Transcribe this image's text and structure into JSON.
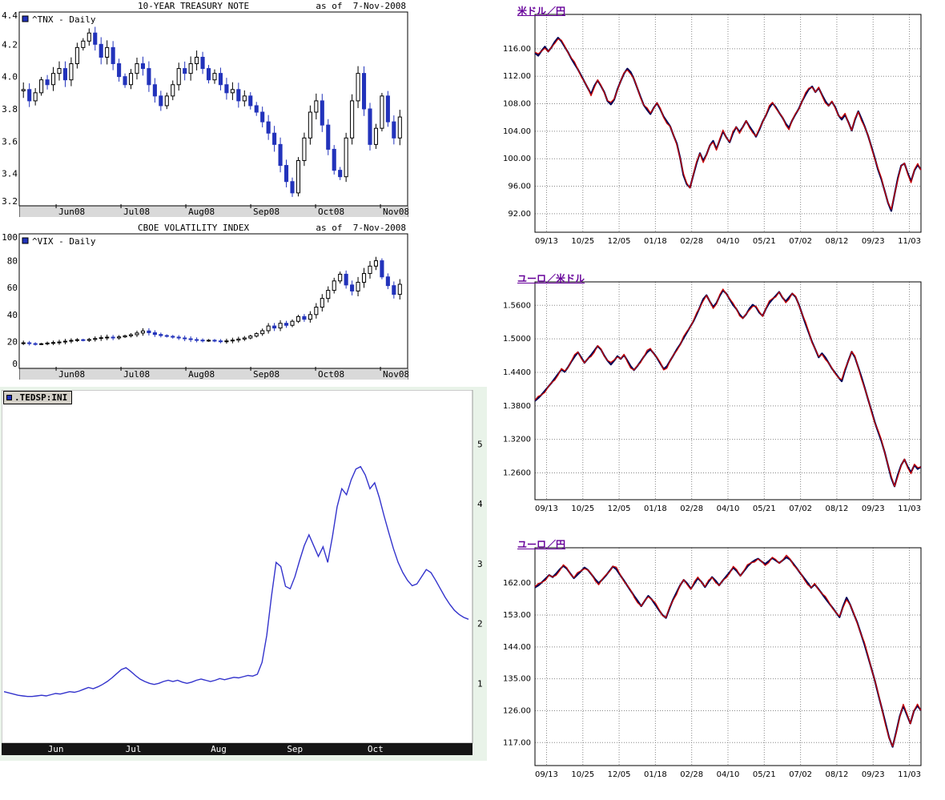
{
  "colors": {
    "candle_blue": "#2233bb",
    "line_blue": "#3333cc",
    "fx_navy": "#000055",
    "fx_red": "#cc0000",
    "title_purple": "#660099",
    "strip_gray": "#d9d9d9",
    "ted_bg": "#e9f3e9",
    "bar_black": "#151515"
  },
  "chart_data": [
    {
      "id": "tnx",
      "type": "candlestick",
      "title": "10-YEAR TREASURY NOTE",
      "as_of": "as of  7-Nov-2008",
      "legend": "^TNX - Daily",
      "ylim": [
        3.2,
        4.4
      ],
      "ytick_vals": [
        4.4,
        4.2,
        4.0,
        3.8,
        3.6,
        3.4,
        3.2
      ],
      "ytick_labels": [
        "4.4",
        "4.2",
        "4.0",
        "3.8",
        "3.6",
        "3.4",
        "3.2"
      ],
      "xlabels": [
        "Jun08",
        "Jul08",
        "Aug08",
        "Sep08",
        "Oct08",
        "Nov08"
      ],
      "xfrac": [
        0.095,
        0.262,
        0.429,
        0.596,
        0.763,
        0.93
      ],
      "hl": 0.05,
      "closes": [
        3.92,
        3.85,
        3.9,
        3.98,
        3.95,
        4.02,
        4.05,
        3.98,
        4.08,
        4.18,
        4.22,
        4.27,
        4.2,
        4.12,
        4.18,
        4.08,
        4.0,
        3.95,
        4.02,
        4.08,
        4.05,
        3.95,
        3.88,
        3.82,
        3.88,
        3.95,
        4.05,
        4.02,
        4.08,
        4.12,
        4.05,
        3.98,
        4.02,
        3.95,
        3.9,
        3.92,
        3.85,
        3.88,
        3.82,
        3.78,
        3.72,
        3.65,
        3.58,
        3.45,
        3.35,
        3.28,
        3.48,
        3.62,
        3.78,
        3.85,
        3.7,
        3.55,
        3.42,
        3.38,
        3.62,
        3.85,
        4.02,
        3.8,
        3.58,
        3.68,
        3.88,
        3.72,
        3.62,
        3.75
      ]
    },
    {
      "id": "vix",
      "type": "candlestick",
      "title": "CBOE VOLATILITY INDEX",
      "as_of": "as of  7-Nov-2008",
      "legend": "^VIX - Daily",
      "ylim": [
        0,
        100
      ],
      "ytick_vals": [
        100,
        80,
        60,
        40,
        20,
        0
      ],
      "ytick_labels": [
        "100",
        "80",
        "60",
        "40",
        "20",
        "0"
      ],
      "xlabels": [
        "Jun08",
        "Jul08",
        "Aug08",
        "Sep08",
        "Oct08",
        "Nov08"
      ],
      "xfrac": [
        0.095,
        0.262,
        0.429,
        0.596,
        0.763,
        0.93
      ],
      "hl": 2.0,
      "hl_growth": [
        0.4,
        0.028
      ],
      "closes": [
        19.0,
        18.4,
        18.0,
        18.3,
        18.8,
        19.2,
        19.6,
        20.2,
        20.8,
        21.3,
        20.8,
        21.5,
        22.2,
        22.8,
        23.2,
        22.6,
        23.4,
        24.2,
        25.0,
        26.3,
        27.8,
        26.5,
        25.2,
        24.4,
        23.8,
        23.2,
        22.6,
        22.0,
        21.4,
        21.0,
        20.6,
        20.9,
        20.4,
        20.0,
        20.4,
        21.0,
        21.8,
        22.6,
        24.0,
        25.8,
        28.0,
        31.5,
        30.0,
        33.5,
        32.0,
        35.0,
        38.5,
        36.5,
        40.0,
        45.5,
        52.0,
        58.0,
        65.0,
        70.0,
        62.0,
        57.5,
        64.0,
        70.5,
        76.0,
        80.0,
        68.0,
        61.5,
        55.0,
        62.5
      ]
    },
    {
      "id": "ted",
      "type": "line",
      "legend": ".TEDSP:INI",
      "ylim": [
        0,
        5.9
      ],
      "ytick_vals": [
        5,
        4,
        3,
        2,
        1
      ],
      "ytick_labels": [
        "5",
        "4",
        "3",
        "2",
        "1"
      ],
      "xlabels": [
        "Jun",
        "Jul",
        "Aug",
        "Sep",
        "Oct"
      ],
      "xfrac": [
        0.098,
        0.263,
        0.444,
        0.606,
        0.777
      ],
      "values": [
        0.86,
        0.84,
        0.82,
        0.8,
        0.79,
        0.78,
        0.78,
        0.79,
        0.8,
        0.79,
        0.81,
        0.83,
        0.82,
        0.84,
        0.86,
        0.85,
        0.87,
        0.9,
        0.93,
        0.91,
        0.94,
        0.98,
        1.03,
        1.09,
        1.16,
        1.23,
        1.26,
        1.2,
        1.13,
        1.07,
        1.03,
        1.0,
        0.98,
        1.0,
        1.03,
        1.05,
        1.03,
        1.05,
        1.02,
        1.0,
        1.02,
        1.05,
        1.07,
        1.05,
        1.03,
        1.05,
        1.08,
        1.06,
        1.08,
        1.1,
        1.09,
        1.11,
        1.13,
        1.12,
        1.15,
        1.35,
        1.8,
        2.45,
        3.02,
        2.95,
        2.62,
        2.58,
        2.78,
        3.05,
        3.3,
        3.48,
        3.3,
        3.12,
        3.28,
        3.02,
        3.45,
        3.95,
        4.25,
        4.15,
        4.4,
        4.58,
        4.62,
        4.48,
        4.25,
        4.35,
        4.1,
        3.8,
        3.52,
        3.25,
        3.02,
        2.85,
        2.72,
        2.63,
        2.66,
        2.78,
        2.9,
        2.85,
        2.72,
        2.58,
        2.44,
        2.32,
        2.22,
        2.15,
        2.1,
        2.07
      ]
    },
    {
      "id": "usdjpy",
      "type": "fx",
      "title": "米ドル／円",
      "ylim": [
        89.3,
        121.0
      ],
      "ytick_vals": [
        116,
        112,
        108,
        104,
        100,
        96,
        92
      ],
      "ytick_labels": [
        "116.00",
        "112.00",
        "108.00",
        "104.00",
        "100.00",
        "96.00",
        "92.00"
      ],
      "xlabels": [
        "09/13",
        "10/25",
        "12/05",
        "01/18",
        "02/28",
        "04/10",
        "05/21",
        "07/02",
        "08/12",
        "09/23",
        "11/03"
      ],
      "values": [
        115.4,
        115.0,
        115.7,
        116.3,
        115.6,
        116.2,
        117.0,
        117.6,
        117.1,
        116.3,
        115.5,
        114.6,
        113.8,
        113.0,
        112.1,
        111.2,
        110.3,
        109.4,
        110.6,
        111.4,
        110.6,
        109.7,
        108.4,
        107.9,
        108.6,
        110.1,
        111.3,
        112.4,
        113.1,
        112.6,
        111.6,
        110.3,
        109.0,
        107.8,
        107.1,
        106.5,
        107.4,
        108.1,
        107.2,
        106.1,
        105.4,
        104.7,
        103.4,
        102.2,
        100.1,
        97.6,
        96.3,
        95.8,
        97.6,
        99.4,
        100.8,
        99.7,
        100.6,
        101.9,
        102.6,
        101.4,
        102.7,
        104.0,
        103.1,
        102.4,
        103.7,
        104.6,
        103.9,
        104.6,
        105.5,
        104.7,
        104.0,
        103.2,
        104.2,
        105.4,
        106.3,
        107.4,
        108.1,
        107.5,
        106.7,
        106.0,
        105.1,
        104.5,
        105.6,
        106.5,
        107.3,
        108.4,
        109.3,
        110.1,
        110.5,
        109.7,
        110.3,
        109.3,
        108.4,
        107.7,
        108.3,
        107.5,
        106.3,
        105.7,
        106.4,
        105.3,
        104.1,
        105.7,
        106.9,
        105.8,
        104.6,
        103.3,
        101.7,
        100.1,
        98.4,
        97.0,
        95.3,
        93.6,
        92.4,
        94.8,
        97.2,
        99.0,
        99.3,
        97.9,
        96.7,
        98.3,
        99.1,
        98.4
      ]
    },
    {
      "id": "eurusd",
      "type": "fx",
      "title": "ユーロ／米ドル",
      "ylim": [
        1.212,
        1.602
      ],
      "ytick_vals": [
        1.56,
        1.5,
        1.44,
        1.38,
        1.32,
        1.26
      ],
      "ytick_labels": [
        "1.5600",
        "1.5000",
        "1.4400",
        "1.3800",
        "1.3200",
        "1.2600"
      ],
      "xlabels": [
        "09/13",
        "10/25",
        "12/05",
        "01/18",
        "02/28",
        "04/10",
        "05/21",
        "07/02",
        "08/12",
        "09/23",
        "11/03"
      ],
      "values": [
        1.389,
        1.394,
        1.4,
        1.407,
        1.414,
        1.421,
        1.429,
        1.437,
        1.445,
        1.441,
        1.449,
        1.459,
        1.468,
        1.476,
        1.467,
        1.457,
        1.464,
        1.471,
        1.479,
        1.487,
        1.481,
        1.47,
        1.461,
        1.454,
        1.461,
        1.469,
        1.464,
        1.471,
        1.461,
        1.451,
        1.444,
        1.451,
        1.459,
        1.468,
        1.476,
        1.481,
        1.474,
        1.466,
        1.456,
        1.446,
        1.451,
        1.461,
        1.471,
        1.481,
        1.49,
        1.501,
        1.511,
        1.521,
        1.531,
        1.544,
        1.557,
        1.571,
        1.578,
        1.567,
        1.557,
        1.564,
        1.577,
        1.587,
        1.581,
        1.571,
        1.561,
        1.554,
        1.544,
        1.537,
        1.544,
        1.554,
        1.561,
        1.557,
        1.547,
        1.541,
        1.554,
        1.564,
        1.571,
        1.577,
        1.584,
        1.574,
        1.567,
        1.574,
        1.581,
        1.575,
        1.561,
        1.544,
        1.527,
        1.511,
        1.494,
        1.481,
        1.467,
        1.474,
        1.467,
        1.457,
        1.447,
        1.439,
        1.431,
        1.424,
        1.444,
        1.461,
        1.477,
        1.467,
        1.449,
        1.431,
        1.411,
        1.391,
        1.371,
        1.351,
        1.334,
        1.317,
        1.297,
        1.274,
        1.251,
        1.236,
        1.257,
        1.274,
        1.284,
        1.271,
        1.261,
        1.274,
        1.267,
        1.271
      ]
    },
    {
      "id": "eurjpy",
      "type": "fx",
      "title": "ユーロ／円",
      "ylim": [
        110.5,
        172.0
      ],
      "ytick_vals": [
        162,
        153,
        144,
        135,
        126,
        117
      ],
      "ytick_labels": [
        "162.00",
        "153.00",
        "144.00",
        "135.00",
        "126.00",
        "117.00"
      ],
      "xlabels": [
        "09/13",
        "10/25",
        "12/05",
        "01/18",
        "02/28",
        "04/10",
        "05/21",
        "07/02",
        "08/12",
        "09/23",
        "11/03"
      ],
      "values": [
        160.8,
        161.4,
        162.3,
        163.3,
        164.3,
        163.7,
        164.7,
        165.9,
        166.9,
        166.1,
        164.7,
        163.4,
        164.4,
        165.4,
        166.4,
        165.7,
        164.4,
        163.1,
        162.0,
        163.0,
        164.1,
        165.4,
        166.7,
        165.9,
        164.4,
        162.9,
        161.4,
        159.9,
        158.4,
        157.0,
        155.5,
        157.0,
        158.4,
        157.4,
        155.9,
        154.4,
        153.0,
        152.2,
        154.9,
        157.4,
        159.4,
        161.4,
        162.9,
        161.9,
        160.4,
        161.9,
        163.4,
        162.4,
        160.9,
        162.4,
        163.7,
        162.7,
        161.4,
        162.7,
        163.9,
        165.1,
        166.4,
        165.4,
        164.1,
        165.4,
        166.7,
        167.7,
        168.4,
        168.9,
        168.1,
        167.4,
        168.2,
        169.1,
        168.4,
        167.7,
        168.5,
        169.3,
        168.7,
        167.4,
        166.1,
        164.7,
        163.4,
        162.1,
        160.7,
        161.7,
        160.4,
        159.1,
        157.7,
        156.4,
        155.1,
        153.7,
        152.4,
        155.4,
        157.9,
        155.9,
        153.4,
        150.9,
        147.9,
        144.9,
        141.4,
        137.9,
        134.4,
        130.4,
        126.4,
        122.4,
        118.4,
        115.8,
        119.9,
        124.4,
        127.4,
        124.9,
        122.4,
        125.9,
        127.4,
        126.1
      ]
    }
  ]
}
